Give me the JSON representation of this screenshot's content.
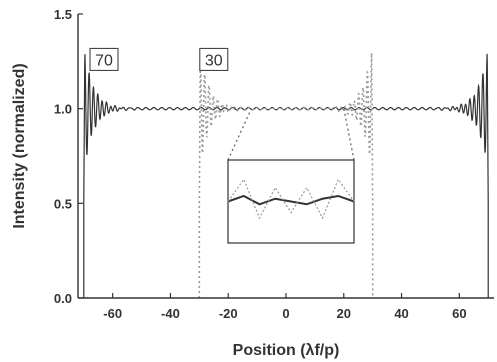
{
  "chart_data": {
    "type": "line",
    "title": "",
    "xlabel": "Position (λf/p)",
    "ylabel": "Intensity (normalized)",
    "xlim": [
      -72,
      72
    ],
    "ylim": [
      0.0,
      1.5
    ],
    "x_ticks": [
      -60,
      -40,
      -20,
      0,
      20,
      40,
      60
    ],
    "x_tick_labels": [
      "-60",
      "-40",
      "-20",
      "0",
      "20",
      "40",
      "60"
    ],
    "y_ticks": [
      0.0,
      0.5,
      1.0,
      1.5
    ],
    "y_tick_labels": [
      "0.0",
      "0.5",
      "1.0",
      "1.5"
    ],
    "grid": false,
    "legend": "none",
    "annotations": [
      {
        "text": "70",
        "x": -63,
        "y": 1.26
      },
      {
        "text": "30",
        "x": -25,
        "y": 1.26
      }
    ],
    "series": [
      {
        "color": "#333333",
        "style": "solid",
        "edge": 70,
        "plateau": 1.0,
        "edge_peak": 1.3,
        "x": [
          -70,
          -69.5,
          -69,
          -68.5,
          -68,
          -67,
          -66,
          -64,
          -62,
          -60,
          -50,
          -40,
          -30,
          -20,
          -10,
          0,
          10,
          20,
          30,
          40,
          50,
          60,
          62,
          64,
          66,
          67,
          68,
          68.5,
          69,
          69.5,
          70
        ],
        "values": [
          0.5,
          1.3,
          0.88,
          1.18,
          0.9,
          1.1,
          0.94,
          1.06,
          0.96,
          1.03,
          1.01,
          1.0,
          1.0,
          1.0,
          1.0,
          1.0,
          1.0,
          1.0,
          1.0,
          1.0,
          1.01,
          1.03,
          0.96,
          1.06,
          0.94,
          1.1,
          0.9,
          1.18,
          0.88,
          1.3,
          0.5
        ]
      },
      {
        "color": "#999999",
        "style": "dotted",
        "edge": 30,
        "plateau": 1.0,
        "edge_peak": 1.3,
        "x": [
          -30,
          -29.5,
          -29,
          -28,
          -27,
          -26,
          -24,
          -22,
          -20,
          -10,
          0,
          10,
          20,
          22,
          24,
          26,
          27,
          28,
          29,
          29.5,
          30
        ],
        "values": [
          0.5,
          1.28,
          0.9,
          1.1,
          0.94,
          1.06,
          0.97,
          1.03,
          1.0,
          1.0,
          1.0,
          1.0,
          1.0,
          1.03,
          0.97,
          1.06,
          0.94,
          1.1,
          0.9,
          1.28,
          0.5
        ]
      }
    ],
    "inset": {
      "x_range": [
        -20,
        20
      ],
      "y_range": [
        0.985,
        1.015
      ],
      "series": [
        {
          "color": "#333333",
          "style": "solid",
          "x": [
            -20,
            -15,
            -10,
            -5,
            0,
            5,
            10,
            15,
            20
          ],
          "values": [
            1.0,
            1.002,
            0.999,
            1.001,
            1.0,
            0.999,
            1.001,
            1.002,
            1.0
          ]
        },
        {
          "color": "#999999",
          "style": "dotted",
          "x": [
            -20,
            -15,
            -10,
            -5,
            0,
            5,
            10,
            15,
            20
          ],
          "values": [
            1.0,
            1.008,
            0.994,
            1.005,
            0.996,
            1.005,
            0.994,
            1.008,
            1.0
          ]
        }
      ]
    }
  }
}
